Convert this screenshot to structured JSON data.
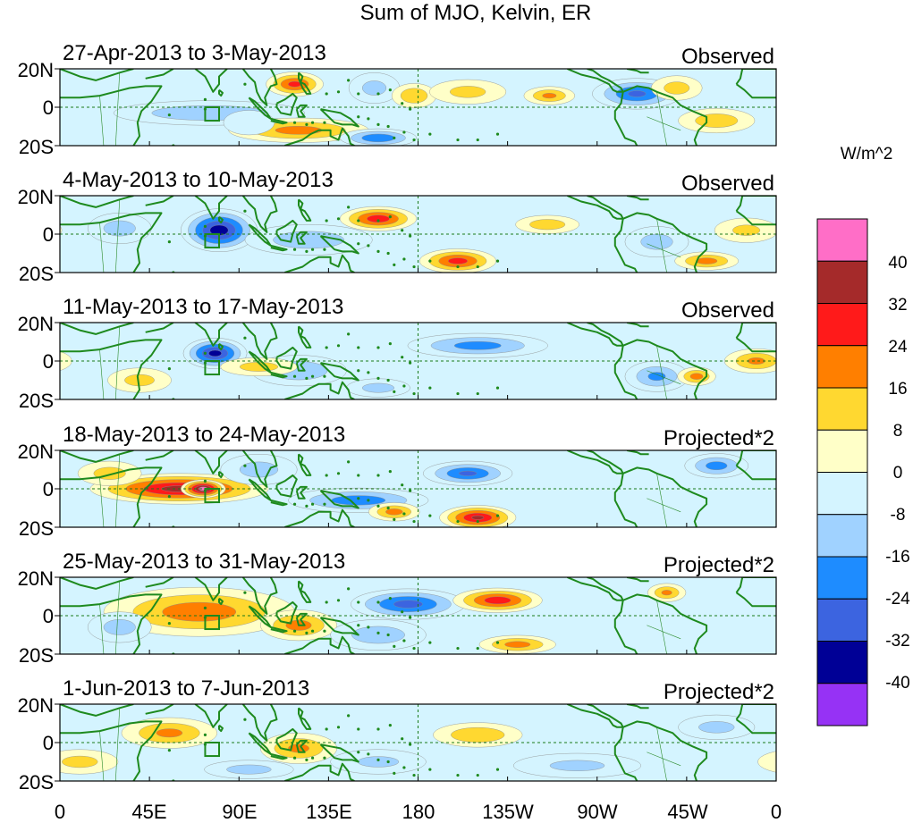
{
  "chart_data": {
    "type": "heatmap",
    "title": "Sum of MJO, Kelvin, ER",
    "colorbar": {
      "units": "W/m^2",
      "levels": [
        "40",
        "32",
        "24",
        "16",
        "8",
        "0",
        "-8",
        "-16",
        "-24",
        "-32",
        "-40"
      ],
      "colors": [
        "#ff6ec7",
        "#a52a2a",
        "#ff1a1a",
        "#ff7f00",
        "#ffd830",
        "#ffffc8",
        "#d4f4ff",
        "#a0d2ff",
        "#1e8cff",
        "#3c64e0",
        "#000096",
        "#9632f5"
      ]
    },
    "x_ticks": [
      "0",
      "45E",
      "90E",
      "135E",
      "180",
      "135W",
      "90W",
      "45W",
      "0"
    ],
    "y_ticks": [
      "20N",
      "0",
      "20S"
    ],
    "panels": [
      {
        "date": "27-Apr-2013 to 3-May-2013",
        "type": "Observed",
        "features": [
          {
            "lon": 75,
            "lat": -3,
            "value": -14,
            "sx": 30,
            "sy": 4
          },
          {
            "lon": 118,
            "lat": 12,
            "value": 25,
            "sx": 9,
            "sy": 4
          },
          {
            "lon": 120,
            "lat": -12,
            "value": 18,
            "sx": 22,
            "sy": 4
          },
          {
            "lon": 160,
            "lat": -16,
            "value": -22,
            "sx": 12,
            "sy": 3
          },
          {
            "lon": 158,
            "lat": 10,
            "value": -9,
            "sx": 8,
            "sy": 5
          },
          {
            "lon": 178,
            "lat": 6,
            "value": 14,
            "sx": 7,
            "sy": 4
          },
          {
            "lon": 205,
            "lat": 8,
            "value": 9,
            "sx": 12,
            "sy": 4
          },
          {
            "lon": 246,
            "lat": 6,
            "value": 16,
            "sx": 8,
            "sy": 3
          },
          {
            "lon": 290,
            "lat": 7,
            "value": -24,
            "sx": 14,
            "sy": 5
          },
          {
            "lon": 310,
            "lat": 10,
            "value": 10,
            "sx": 8,
            "sy": 4
          },
          {
            "lon": 330,
            "lat": -7,
            "value": 12,
            "sx": 12,
            "sy": 4
          },
          {
            "lon": 95,
            "lat": -8,
            "value": -6,
            "sx": 8,
            "sy": 4
          }
        ]
      },
      {
        "date": "4-May-2013 to 10-May-2013",
        "type": "Observed",
        "features": [
          {
            "lon": 80,
            "lat": 2,
            "value": -36,
            "sx": 12,
            "sy": 7
          },
          {
            "lon": 30,
            "lat": 3,
            "value": -10,
            "sx": 10,
            "sy": 5
          },
          {
            "lon": 160,
            "lat": 8,
            "value": 28,
            "sx": 12,
            "sy": 4
          },
          {
            "lon": 200,
            "lat": -14,
            "value": 26,
            "sx": 12,
            "sy": 4
          },
          {
            "lon": 125,
            "lat": -3,
            "value": -12,
            "sx": 20,
            "sy": 5
          },
          {
            "lon": 245,
            "lat": 5,
            "value": 12,
            "sx": 10,
            "sy": 3
          },
          {
            "lon": 325,
            "lat": -14,
            "value": 18,
            "sx": 10,
            "sy": 3
          },
          {
            "lon": 300,
            "lat": -4,
            "value": -10,
            "sx": 10,
            "sy": 5
          },
          {
            "lon": 345,
            "lat": 2,
            "value": 8,
            "sx": 10,
            "sy": 4
          }
        ]
      },
      {
        "date": "11-May-2013 to 17-May-2013",
        "type": "Observed",
        "features": [
          {
            "lon": 78,
            "lat": 4,
            "value": -34,
            "sx": 10,
            "sy": 5
          },
          {
            "lon": 120,
            "lat": -5,
            "value": -14,
            "sx": 15,
            "sy": 5
          },
          {
            "lon": 210,
            "lat": 8,
            "value": -18,
            "sx": 22,
            "sy": 4
          },
          {
            "lon": 100,
            "lat": -3,
            "value": 10,
            "sx": 12,
            "sy": 3
          },
          {
            "lon": 300,
            "lat": -8,
            "value": -16,
            "sx": 10,
            "sy": 5
          },
          {
            "lon": 350,
            "lat": 0,
            "value": 16,
            "sx": 10,
            "sy": 4
          },
          {
            "lon": 320,
            "lat": -8,
            "value": 18,
            "sx": 6,
            "sy": 3
          },
          {
            "lon": 40,
            "lat": -10,
            "value": 9,
            "sx": 10,
            "sy": 4
          },
          {
            "lon": 160,
            "lat": -14,
            "value": -10,
            "sx": 10,
            "sy": 3
          }
        ]
      },
      {
        "date": "18-May-2013 to 24-May-2013",
        "type": "Projected*2",
        "features": [
          {
            "lon": 60,
            "lat": 0,
            "value": 34,
            "sx": 28,
            "sy": 5
          },
          {
            "lon": 72,
            "lat": 0,
            "value": 44,
            "sx": 7,
            "sy": 3
          },
          {
            "lon": 150,
            "lat": -6,
            "value": -20,
            "sx": 22,
            "sy": 4
          },
          {
            "lon": 210,
            "lat": -15,
            "value": 32,
            "sx": 12,
            "sy": 4
          },
          {
            "lon": 205,
            "lat": 8,
            "value": -24,
            "sx": 14,
            "sy": 4
          },
          {
            "lon": 168,
            "lat": -12,
            "value": 18,
            "sx": 8,
            "sy": 3
          },
          {
            "lon": 330,
            "lat": 12,
            "value": -18,
            "sx": 10,
            "sy": 4
          },
          {
            "lon": 25,
            "lat": 8,
            "value": 10,
            "sx": 10,
            "sy": 4
          },
          {
            "lon": 100,
            "lat": 10,
            "value": -10,
            "sx": 12,
            "sy": 5
          }
        ]
      },
      {
        "date": "25-May-2013 to 31-May-2013",
        "type": "Projected*2",
        "features": [
          {
            "lon": 70,
            "lat": 2,
            "value": 20,
            "sx": 30,
            "sy": 8
          },
          {
            "lon": 120,
            "lat": -5,
            "value": 18,
            "sx": 12,
            "sy": 5
          },
          {
            "lon": 175,
            "lat": 6,
            "value": -26,
            "sx": 18,
            "sy": 5
          },
          {
            "lon": 220,
            "lat": 8,
            "value": 28,
            "sx": 14,
            "sy": 4
          },
          {
            "lon": 230,
            "lat": -15,
            "value": 18,
            "sx": 12,
            "sy": 3
          },
          {
            "lon": 305,
            "lat": 12,
            "value": 16,
            "sx": 6,
            "sy": 3
          },
          {
            "lon": 160,
            "lat": -10,
            "value": -12,
            "sx": 15,
            "sy": 5
          },
          {
            "lon": 30,
            "lat": -6,
            "value": -10,
            "sx": 10,
            "sy": 5
          }
        ]
      },
      {
        "date": "1-Jun-2013 to 7-Jun-2013",
        "type": "Projected*2",
        "features": [
          {
            "lon": 55,
            "lat": 5,
            "value": 16,
            "sx": 15,
            "sy": 5
          },
          {
            "lon": 120,
            "lat": -3,
            "value": 16,
            "sx": 12,
            "sy": 5
          },
          {
            "lon": 210,
            "lat": 4,
            "value": 14,
            "sx": 14,
            "sy": 4
          },
          {
            "lon": 95,
            "lat": -14,
            "value": -10,
            "sx": 14,
            "sy": 3
          },
          {
            "lon": 160,
            "lat": -10,
            "value": -8,
            "sx": 15,
            "sy": 4
          },
          {
            "lon": 10,
            "lat": -10,
            "value": 9,
            "sx": 12,
            "sy": 4
          },
          {
            "lon": 330,
            "lat": 8,
            "value": -9,
            "sx": 12,
            "sy": 4
          },
          {
            "lon": 260,
            "lat": -12,
            "value": -8,
            "sx": 20,
            "sy": 4
          }
        ]
      }
    ]
  }
}
